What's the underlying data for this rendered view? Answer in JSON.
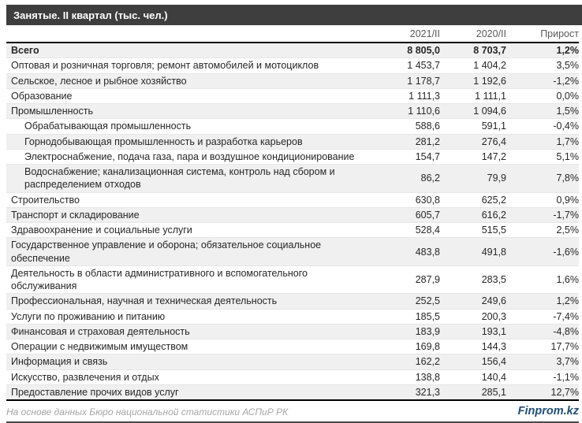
{
  "chart_data": {
    "type": "table",
    "title": "Занятые. II квартал (тыс. чел.)",
    "columns": [
      "2021/II",
      "2020/II",
      "Прирост"
    ],
    "rows": [
      {
        "label": "Всего",
        "values": [
          "8 805,0",
          "8 703,7",
          "1,2%"
        ],
        "bold": true,
        "indent": false
      },
      {
        "label": "Оптовая и розничная торговля; ремонт автомобилей и мотоциклов",
        "values": [
          "1 453,7",
          "1 404,2",
          "3,5%"
        ],
        "bold": false,
        "indent": false
      },
      {
        "label": "Сельское, лесное и рыбное хозяйство",
        "values": [
          "1 178,7",
          "1 192,6",
          "-1,2%"
        ],
        "bold": false,
        "indent": false
      },
      {
        "label": "Образование",
        "values": [
          "1 111,3",
          "1 111,1",
          "0,0%"
        ],
        "bold": false,
        "indent": false
      },
      {
        "label": "Промышленность",
        "values": [
          "1 110,6",
          "1 094,6",
          "1,5%"
        ],
        "bold": false,
        "indent": false
      },
      {
        "label": "Обрабатывающая промышленность",
        "values": [
          "588,6",
          "591,1",
          "-0,4%"
        ],
        "bold": false,
        "indent": true
      },
      {
        "label": "Горнодобывающая промышленность и разработка карьеров",
        "values": [
          "281,2",
          "276,4",
          "1,7%"
        ],
        "bold": false,
        "indent": true
      },
      {
        "label": "Электроснабжение, подача газа, пара и воздушное кондиционирование",
        "values": [
          "154,7",
          "147,2",
          "5,1%"
        ],
        "bold": false,
        "indent": true
      },
      {
        "label": "Водоснабжение; канализационная система, контроль над сбором и распределением отходов",
        "values": [
          "86,2",
          "79,9",
          "7,8%"
        ],
        "bold": false,
        "indent": true
      },
      {
        "label": "Строительство",
        "values": [
          "630,8",
          "625,2",
          "0,9%"
        ],
        "bold": false,
        "indent": false
      },
      {
        "label": "Транспорт и складирование",
        "values": [
          "605,7",
          "616,2",
          "-1,7%"
        ],
        "bold": false,
        "indent": false
      },
      {
        "label": "Здравоохранение и социальные услуги",
        "values": [
          "528,4",
          "515,5",
          "2,5%"
        ],
        "bold": false,
        "indent": false
      },
      {
        "label": "Государственное управление и оборона; обязательное социальное обеспечение",
        "values": [
          "483,8",
          "491,8",
          "-1,6%"
        ],
        "bold": false,
        "indent": false
      },
      {
        "label": "Деятельность в области административного и вспомогательного обслуживания",
        "values": [
          "287,9",
          "283,5",
          "1,6%"
        ],
        "bold": false,
        "indent": false
      },
      {
        "label": "Профессиональная, научная и техническая деятельность",
        "values": [
          "252,5",
          "249,6",
          "1,2%"
        ],
        "bold": false,
        "indent": false
      },
      {
        "label": "Услуги по проживанию и питанию",
        "values": [
          "185,5",
          "200,3",
          "-7,4%"
        ],
        "bold": false,
        "indent": false
      },
      {
        "label": "Финансовая и страховая деятельность",
        "values": [
          "183,9",
          "193,1",
          "-4,8%"
        ],
        "bold": false,
        "indent": false
      },
      {
        "label": "Операции с недвижимым имуществом",
        "values": [
          "169,8",
          "144,3",
          "17,7%"
        ],
        "bold": false,
        "indent": false
      },
      {
        "label": "Информация и связь",
        "values": [
          "162,2",
          "156,4",
          "3,7%"
        ],
        "bold": false,
        "indent": false
      },
      {
        "label": "Искусство, развлечения и отдых",
        "values": [
          "138,8",
          "140,4",
          "-1,1%"
        ],
        "bold": false,
        "indent": false
      },
      {
        "label": "Предоставление прочих видов услуг",
        "values": [
          "321,3",
          "285,1",
          "12,7%"
        ],
        "bold": false,
        "indent": false
      }
    ]
  },
  "footer": {
    "source": "На основе данных Бюро национальной статистики АСПиР РК",
    "brand": "Finprom.kz"
  },
  "colors": {
    "title_bar_bg": "#3E3E3E",
    "title_text": "#FFFFFF",
    "header_text": "#595959",
    "row_stripe": "#F0F0F0",
    "table_border": "#000000",
    "source_text": "#A6A6A6",
    "brand_text": "#1F4E79"
  }
}
